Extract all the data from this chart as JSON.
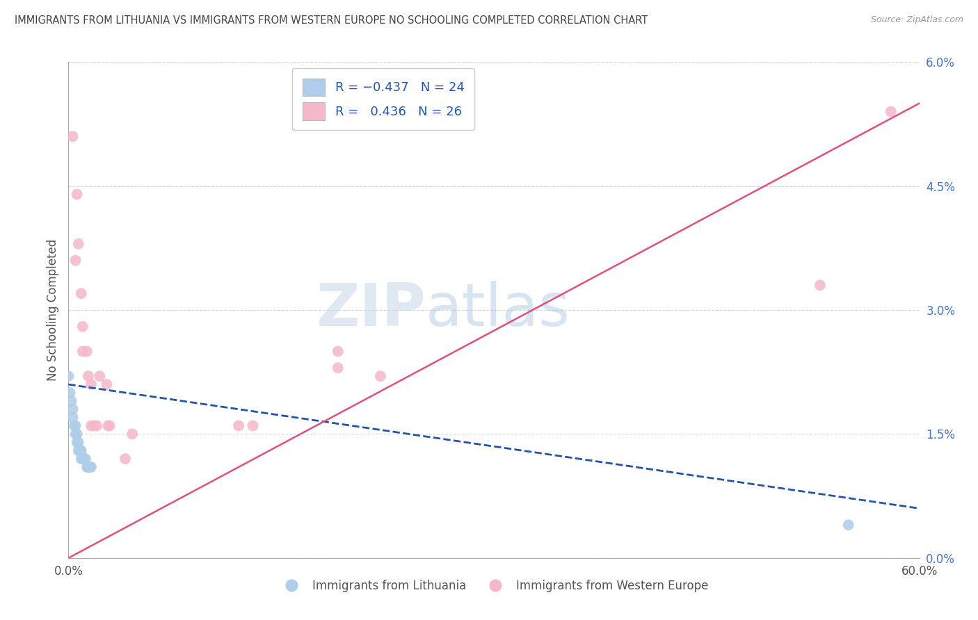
{
  "title": "IMMIGRANTS FROM LITHUANIA VS IMMIGRANTS FROM WESTERN EUROPE NO SCHOOLING COMPLETED CORRELATION CHART",
  "source": "Source: ZipAtlas.com",
  "ylabel": "No Schooling Completed",
  "watermark_zip": "ZIP",
  "watermark_atlas": "atlas",
  "legend_label1": "Immigrants from Lithuania",
  "legend_label2": "Immigrants from Western Europe",
  "xmin": 0.0,
  "xmax": 0.6,
  "ymin": 0.0,
  "ymax": 0.06,
  "color_blue": "#aecde8",
  "color_blue_line": "#2255aa",
  "color_pink": "#f5b8c8",
  "color_pink_line": "#e0507a",
  "background": "#ffffff",
  "grid_color": "#bbbbbb",
  "ytick_values": [
    0.0,
    0.015,
    0.03,
    0.045,
    0.06
  ],
  "blue_x": [
    0.0,
    0.001,
    0.002,
    0.003,
    0.003,
    0.004,
    0.005,
    0.005,
    0.006,
    0.006,
    0.007,
    0.007,
    0.008,
    0.008,
    0.009,
    0.009,
    0.01,
    0.011,
    0.012,
    0.013,
    0.014,
    0.015,
    0.016,
    0.55
  ],
  "blue_y": [
    0.022,
    0.02,
    0.019,
    0.018,
    0.017,
    0.016,
    0.016,
    0.015,
    0.015,
    0.014,
    0.014,
    0.013,
    0.013,
    0.013,
    0.013,
    0.012,
    0.012,
    0.012,
    0.012,
    0.011,
    0.011,
    0.011,
    0.011,
    0.004
  ],
  "pink_x": [
    0.003,
    0.005,
    0.006,
    0.007,
    0.009,
    0.01,
    0.01,
    0.013,
    0.014,
    0.016,
    0.016,
    0.018,
    0.02,
    0.022,
    0.027,
    0.028,
    0.029,
    0.04,
    0.045,
    0.12,
    0.13,
    0.19,
    0.19,
    0.22,
    0.53,
    0.58
  ],
  "pink_y": [
    0.051,
    0.036,
    0.044,
    0.038,
    0.032,
    0.028,
    0.025,
    0.025,
    0.022,
    0.021,
    0.016,
    0.016,
    0.016,
    0.022,
    0.021,
    0.016,
    0.016,
    0.012,
    0.015,
    0.016,
    0.016,
    0.023,
    0.025,
    0.022,
    0.033,
    0.054
  ],
  "blue_trendline_x": [
    0.0,
    0.6
  ],
  "blue_trendline_y": [
    0.021,
    0.006
  ],
  "pink_trendline_x": [
    0.0,
    0.6
  ],
  "pink_trendline_y": [
    0.0,
    0.055
  ],
  "blue_size": 130,
  "pink_size": 130
}
